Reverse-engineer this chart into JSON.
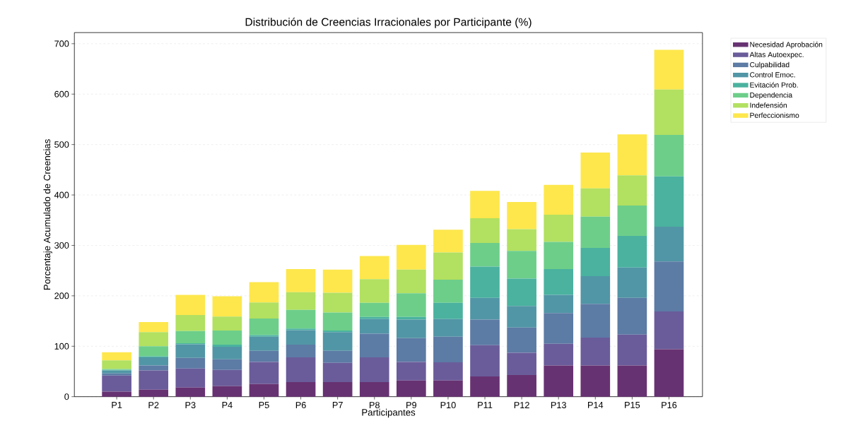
{
  "chart_data": {
    "type": "bar",
    "stacked": true,
    "title": "Distribución de Creencias Irracionales por Participante (%)",
    "xlabel": "Participantes",
    "ylabel": "Porcentaje Acumulado de Creencias",
    "categories": [
      "P1",
      "P2",
      "P3",
      "P4",
      "P5",
      "P6",
      "P7",
      "P8",
      "P9",
      "P10",
      "P11",
      "P12",
      "P13",
      "P14",
      "P15",
      "P16"
    ],
    "ylim": [
      0,
      722
    ],
    "yticks": [
      0,
      100,
      200,
      300,
      400,
      500,
      600,
      700
    ],
    "grid": "y",
    "legend": "top right",
    "series": [
      {
        "name": "Necesidad Aprobación",
        "color": "#673272",
        "values": [
          10,
          14,
          18,
          21,
          25,
          29,
          29,
          29,
          32,
          32,
          40,
          43,
          62,
          62,
          62,
          94
        ]
      },
      {
        "name": "Altas Autoexpec.",
        "color": "#6a5c9a",
        "values": [
          32,
          38,
          38,
          32,
          44,
          49,
          38,
          49,
          37,
          36,
          62,
          44,
          43,
          55,
          61,
          75
        ]
      },
      {
        "name": "Culpabilidad",
        "color": "#5c7ba5",
        "values": [
          4,
          10,
          21,
          21,
          22,
          25,
          24,
          47,
          47,
          51,
          51,
          50,
          61,
          67,
          73,
          99
        ]
      },
      {
        "name": "Control Emoc.",
        "color": "#5196a6",
        "values": [
          6,
          16,
          27,
          25,
          28,
          29,
          37,
          29,
          37,
          35,
          43,
          43,
          36,
          55,
          60,
          69
        ]
      },
      {
        "name": "Evitación Prob.",
        "color": "#4ab29f",
        "values": [
          1,
          2,
          2,
          4,
          3,
          3,
          3,
          4,
          5,
          32,
          62,
          54,
          51,
          56,
          63,
          100
        ]
      },
      {
        "name": "Dependencia",
        "color": "#6dce8a",
        "values": [
          2,
          20,
          24,
          28,
          33,
          37,
          36,
          28,
          47,
          46,
          47,
          55,
          54,
          62,
          60,
          82
        ]
      },
      {
        "name": "Indefensión",
        "color": "#b2e061",
        "values": [
          17,
          28,
          32,
          28,
          32,
          35,
          39,
          47,
          47,
          54,
          49,
          43,
          54,
          56,
          60,
          90
        ]
      },
      {
        "name": "Perfeccionismo",
        "color": "#fde74c",
        "values": [
          16,
          20,
          40,
          40,
          40,
          46,
          46,
          46,
          49,
          45,
          54,
          54,
          59,
          71,
          81,
          79
        ]
      }
    ]
  }
}
